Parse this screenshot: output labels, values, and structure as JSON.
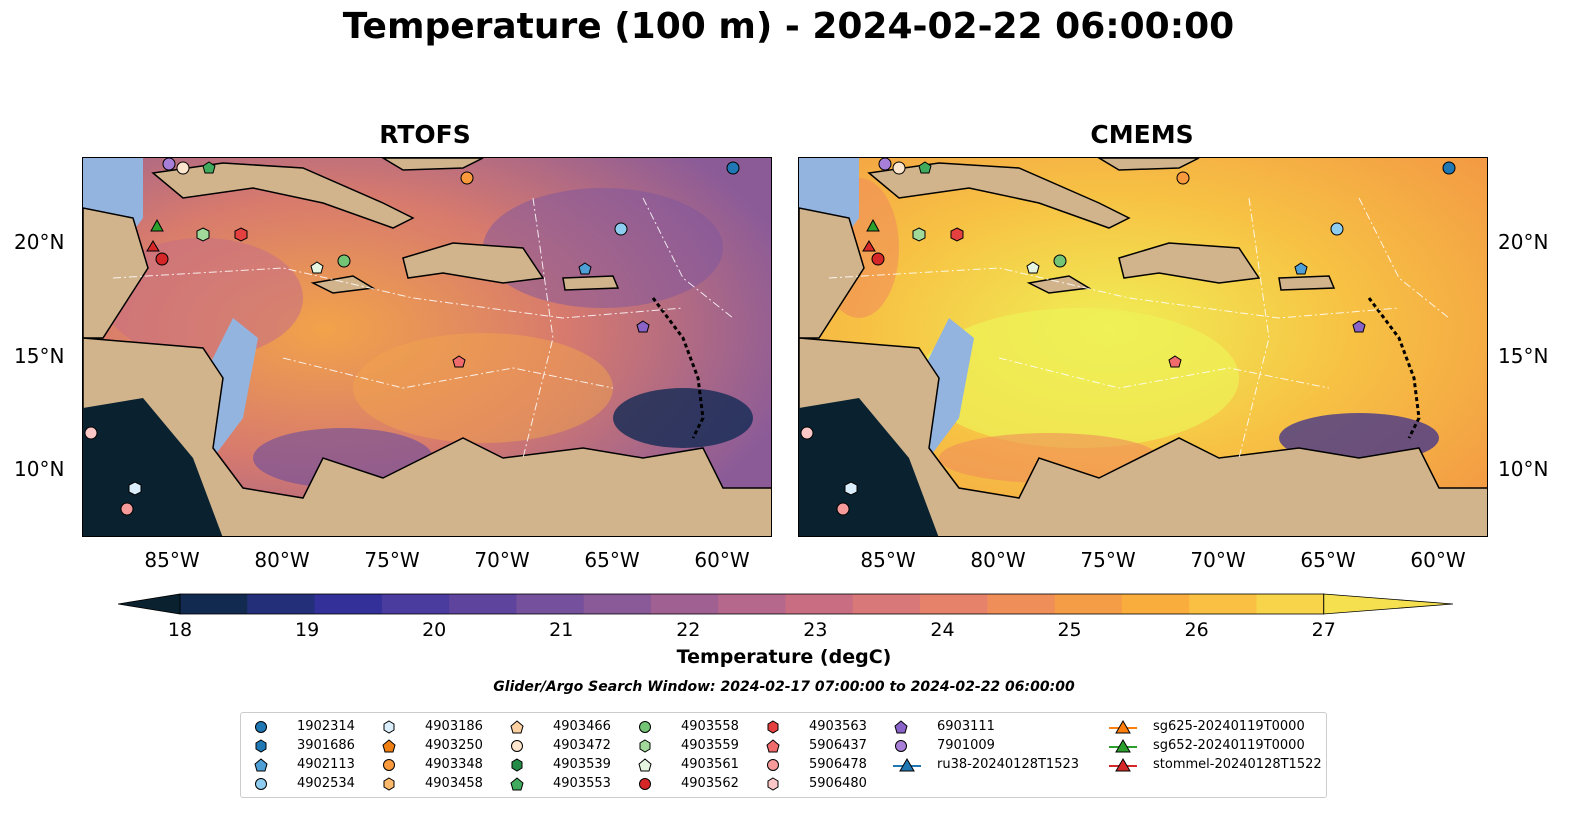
{
  "title": "Temperature (100 m) - 2024-02-22 06:00:00",
  "panels": [
    {
      "name": "RTOFS"
    },
    {
      "name": "CMEMS"
    }
  ],
  "lat_labels": [
    "20°N",
    "15°N",
    "10°N"
  ],
  "lon_labels": [
    "85°W",
    "80°W",
    "75°W",
    "70°W",
    "65°W",
    "60°W"
  ],
  "colorbar": {
    "label": "Temperature (degC)",
    "ticks": [
      "18",
      "19",
      "20",
      "21",
      "22",
      "23",
      "24",
      "25",
      "26",
      "27"
    ],
    "colors": [
      "#0a2230",
      "#122a4f",
      "#242f7a",
      "#34309a",
      "#4a3b9e",
      "#5f449e",
      "#75509c",
      "#8a5a98",
      "#a06192",
      "#b5688c",
      "#c96e82",
      "#d97878",
      "#e6826a",
      "#f08e5a",
      "#f59c46",
      "#f8ad3c",
      "#fac043",
      "#f8d44a",
      "#f5e04f"
    ],
    "range": [
      18,
      27
    ]
  },
  "search_window": "Glider/Argo Search Window: 2024-02-17 07:00:00 to 2024-02-22 06:00:00",
  "legend": {
    "items": [
      {
        "label": "1902314",
        "marker": "circle",
        "color": "#1f77b4"
      },
      {
        "label": "3901686",
        "marker": "hexagon",
        "color": "#1f77b4"
      },
      {
        "label": "4902113",
        "marker": "pentagon",
        "color": "#4d9fd6"
      },
      {
        "label": "4902534",
        "marker": "circle",
        "color": "#8fcdf0"
      },
      {
        "label": "4903186",
        "marker": "hexagon",
        "color": "#dbeefb"
      },
      {
        "label": "4903250",
        "marker": "pentagon",
        "color": "#f07f13"
      },
      {
        "label": "4903348",
        "marker": "circle",
        "color": "#fb9a3c"
      },
      {
        "label": "4903458",
        "marker": "hexagon",
        "color": "#fdb96b"
      },
      {
        "label": "4903466",
        "marker": "pentagon",
        "color": "#fdd0a2"
      },
      {
        "label": "4903472",
        "marker": "circle",
        "color": "#fee6ce"
      },
      {
        "label": "4903539",
        "marker": "hexagon",
        "color": "#238b45"
      },
      {
        "label": "4903553",
        "marker": "pentagon",
        "color": "#41ab5d"
      },
      {
        "label": "4903558",
        "marker": "circle",
        "color": "#74c476"
      },
      {
        "label": "4903559",
        "marker": "hexagon",
        "color": "#a1d99b"
      },
      {
        "label": "4903561",
        "marker": "pentagon",
        "color": "#e5f5e0"
      },
      {
        "label": "4903562",
        "marker": "circle",
        "color": "#d62728"
      },
      {
        "label": "4903563",
        "marker": "hexagon",
        "color": "#e3403f"
      },
      {
        "label": "5906437",
        "marker": "pentagon",
        "color": "#f06b6b"
      },
      {
        "label": "5906478",
        "marker": "circle",
        "color": "#f79a9a"
      },
      {
        "label": "5906480",
        "marker": "hexagon",
        "color": "#fcc7c7"
      },
      {
        "label": "6903111",
        "marker": "pentagon",
        "color": "#8a63c8"
      },
      {
        "label": "7901009",
        "marker": "circle",
        "color": "#a87fd8"
      },
      {
        "label": "ru38-20240128T1523",
        "marker": "triangle-line",
        "color": "#1f77b4"
      },
      {
        "label": "sg625-20240119T0000",
        "marker": "triangle-line",
        "color": "#ff7f0e"
      },
      {
        "label": "sg652-20240119T0000",
        "marker": "triangle-line",
        "color": "#2ca02c"
      },
      {
        "label": "stommel-20240128T1522",
        "marker": "triangle-line",
        "color": "#d62728"
      }
    ]
  },
  "colors": {
    "land": "#d2b48c",
    "shelf": "#94b4e0",
    "rtofs_sea": "#d97b6c",
    "cmems_sea": "#f5c743"
  }
}
